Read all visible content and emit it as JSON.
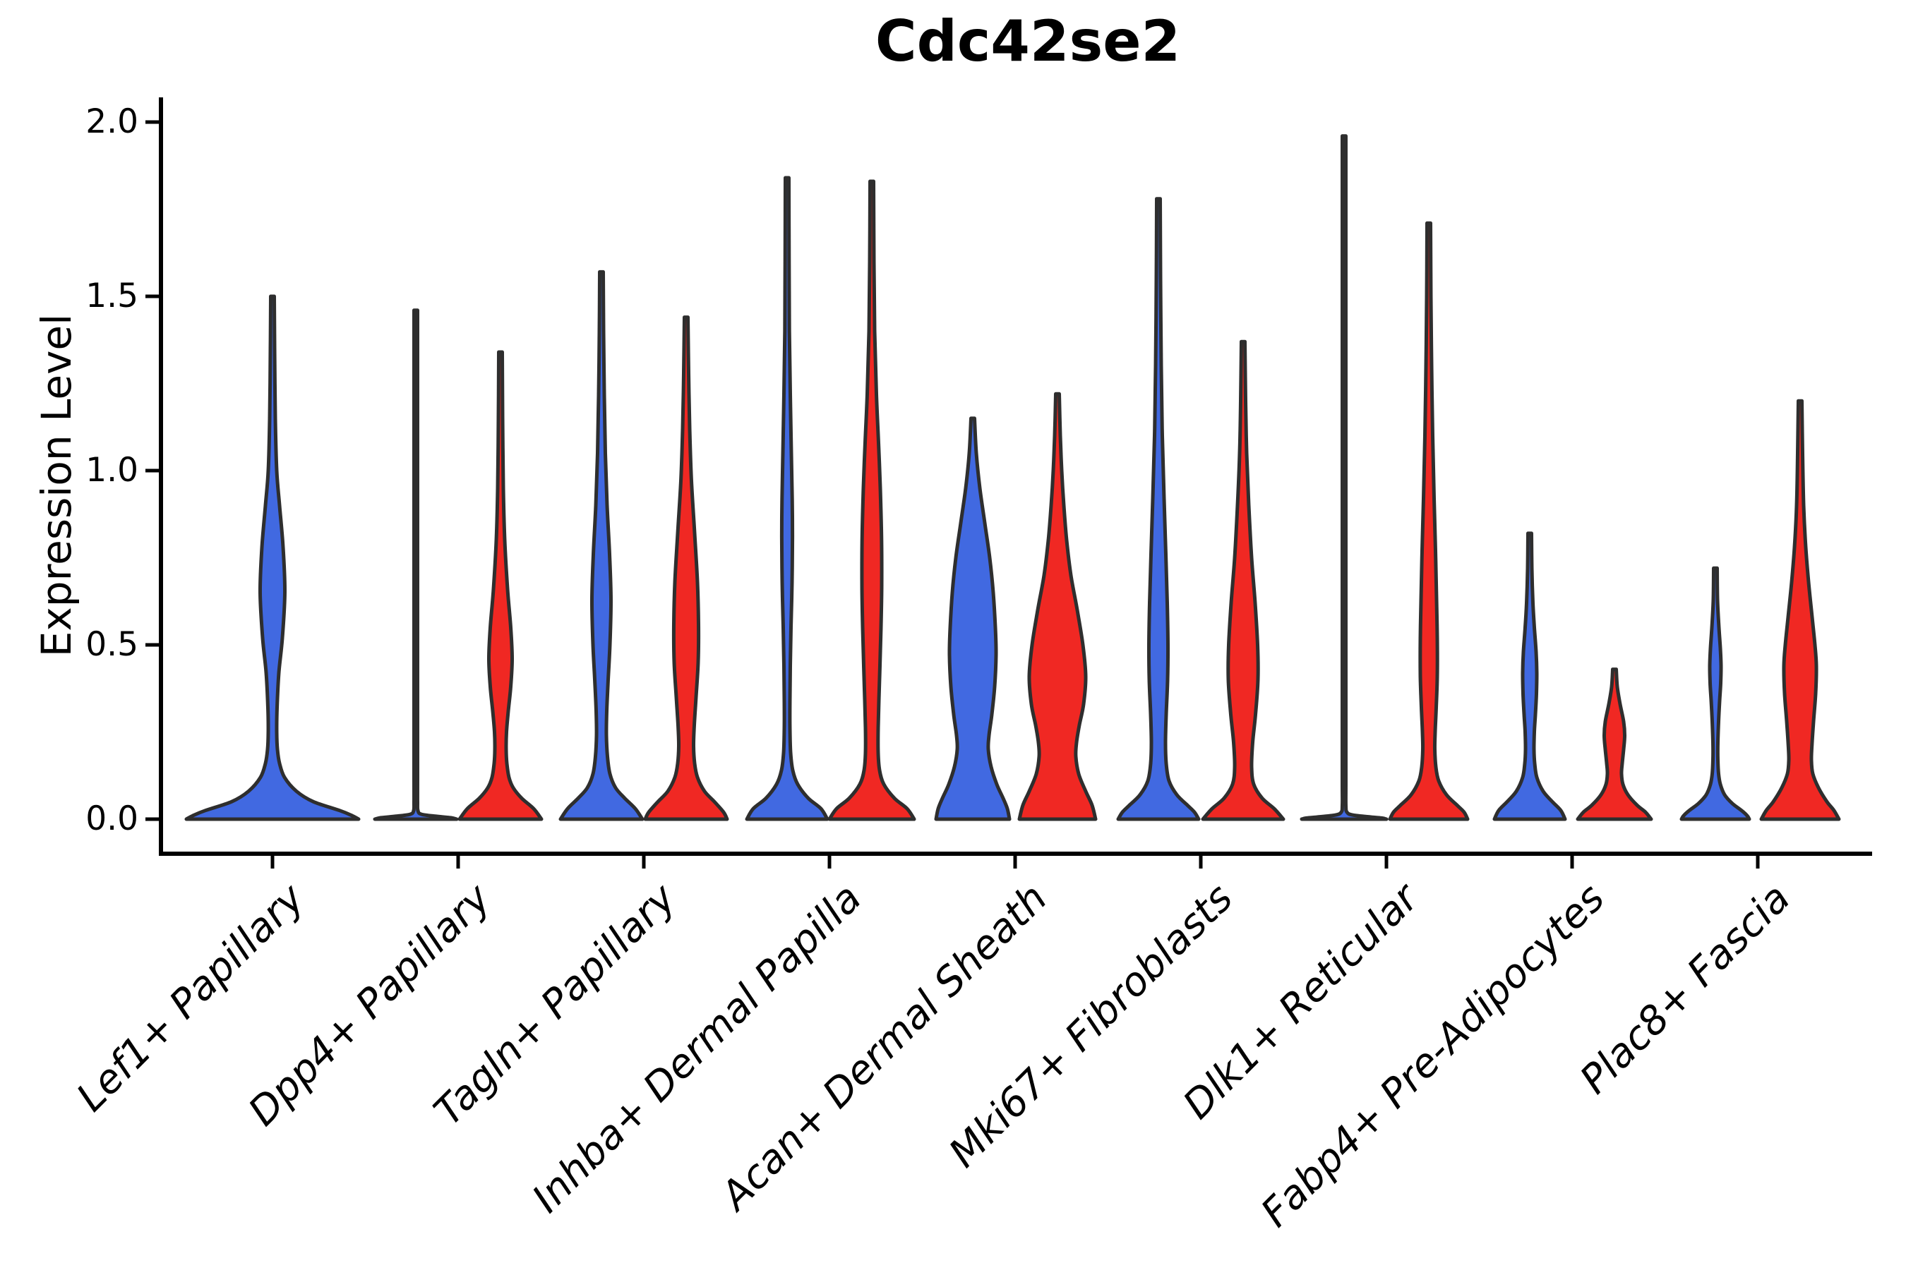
{
  "chart_data": {
    "type": "violin",
    "title": "Cdc42se2",
    "ylabel": "Expression Level",
    "xlabel": "",
    "ylim": [
      0,
      2.0
    ],
    "ytick_labels": [
      "0.0",
      "0.5",
      "1.0",
      "1.5",
      "2.0"
    ],
    "ytick_values": [
      0,
      0.5,
      1.0,
      1.5,
      2.0
    ],
    "grid": false,
    "legend_position": "none",
    "categories": [
      "Lef1+ Papillary",
      "Dpp4+ Papillary",
      "Tagln+ Papillary",
      "Inhba+ Dermal Papilla",
      "Acan+ Dermal Sheath",
      "Mki67+ Fibroblasts",
      "Dlk1+ Reticular",
      "Fabp4+ Pre-Adipocytes",
      "Plac8+ Fascia"
    ],
    "series": [
      {
        "name": "group-blue",
        "color": "#4169E1"
      },
      {
        "name": "group-red",
        "color": "#F02823"
      }
    ],
    "outline_color": "#2e2e2e",
    "axis_color": "#000000",
    "violins": [
      {
        "category_index": 0,
        "series_index": 0,
        "position": "center",
        "max_expression": 1.5,
        "profile": [
          [
            1.5,
            2.5
          ],
          [
            1.35,
            3
          ],
          [
            1.15,
            4
          ],
          [
            1.0,
            6
          ],
          [
            0.9,
            10
          ],
          [
            0.78,
            15
          ],
          [
            0.65,
            17.5
          ],
          [
            0.52,
            14
          ],
          [
            0.42,
            9
          ],
          [
            0.32,
            6.5
          ],
          [
            0.25,
            6
          ],
          [
            0.2,
            7
          ],
          [
            0.16,
            10
          ],
          [
            0.12,
            17
          ],
          [
            0.08,
            34
          ],
          [
            0.05,
            58
          ],
          [
            0.025,
            95
          ],
          [
            0.01,
            113
          ],
          [
            0,
            122
          ]
        ]
      },
      {
        "category_index": 1,
        "series_index": 0,
        "position": "left",
        "max_expression": 1.46,
        "profile": [
          [
            1.46,
            2.5
          ],
          [
            1.0,
            2.5
          ],
          [
            0.5,
            2.5
          ],
          [
            0.12,
            2.5
          ],
          [
            0.05,
            2.5
          ],
          [
            0.025,
            3
          ],
          [
            0.014,
            8
          ],
          [
            0.008,
            30
          ],
          [
            0.004,
            50
          ],
          [
            0,
            58
          ]
        ]
      },
      {
        "category_index": 1,
        "series_index": 1,
        "position": "right",
        "max_expression": 1.34,
        "profile": [
          [
            1.34,
            2.5
          ],
          [
            1.15,
            3
          ],
          [
            0.95,
            4
          ],
          [
            0.8,
            6
          ],
          [
            0.66,
            10
          ],
          [
            0.55,
            14.5
          ],
          [
            0.46,
            16.5
          ],
          [
            0.38,
            14.5
          ],
          [
            0.31,
            11
          ],
          [
            0.25,
            8.5
          ],
          [
            0.2,
            8
          ],
          [
            0.16,
            9
          ],
          [
            0.12,
            12
          ],
          [
            0.09,
            18
          ],
          [
            0.06,
            30
          ],
          [
            0.03,
            47
          ],
          [
            0,
            58
          ]
        ]
      },
      {
        "category_index": 2,
        "series_index": 0,
        "position": "left",
        "max_expression": 1.57,
        "profile": [
          [
            1.57,
            2.5
          ],
          [
            1.4,
            3
          ],
          [
            1.22,
            4
          ],
          [
            1.05,
            5.5
          ],
          [
            0.9,
            8
          ],
          [
            0.76,
            11.5
          ],
          [
            0.63,
            13.5
          ],
          [
            0.5,
            12
          ],
          [
            0.4,
            9.5
          ],
          [
            0.31,
            7.5
          ],
          [
            0.24,
            7
          ],
          [
            0.18,
            8.5
          ],
          [
            0.13,
            12
          ],
          [
            0.09,
            20
          ],
          [
            0.06,
            33
          ],
          [
            0.03,
            48
          ],
          [
            0,
            58
          ]
        ]
      },
      {
        "category_index": 2,
        "series_index": 1,
        "position": "right",
        "max_expression": 1.44,
        "profile": [
          [
            1.44,
            2.5
          ],
          [
            1.28,
            3.5
          ],
          [
            1.12,
            5
          ],
          [
            0.97,
            7.5
          ],
          [
            0.82,
            12
          ],
          [
            0.68,
            16
          ],
          [
            0.56,
            17.5
          ],
          [
            0.45,
            17
          ],
          [
            0.35,
            14
          ],
          [
            0.27,
            11.5
          ],
          [
            0.21,
            10.5
          ],
          [
            0.16,
            12
          ],
          [
            0.12,
            16
          ],
          [
            0.08,
            26
          ],
          [
            0.05,
            40
          ],
          [
            0.02,
            53
          ],
          [
            0,
            58
          ]
        ]
      },
      {
        "category_index": 3,
        "series_index": 0,
        "position": "left",
        "max_expression": 1.84,
        "profile": [
          [
            1.84,
            2.5
          ],
          [
            1.6,
            2.8
          ],
          [
            1.4,
            3.2
          ],
          [
            1.22,
            4.5
          ],
          [
            1.05,
            6
          ],
          [
            0.92,
            7.2
          ],
          [
            0.81,
            7.6
          ],
          [
            0.68,
            7
          ],
          [
            0.55,
            5.5
          ],
          [
            0.44,
            4.5
          ],
          [
            0.34,
            4
          ],
          [
            0.26,
            4
          ],
          [
            0.19,
            5
          ],
          [
            0.14,
            8
          ],
          [
            0.1,
            15
          ],
          [
            0.06,
            30
          ],
          [
            0.03,
            48
          ],
          [
            0,
            57
          ]
        ]
      },
      {
        "category_index": 3,
        "series_index": 1,
        "position": "right",
        "max_expression": 1.83,
        "profile": [
          [
            1.83,
            2.5
          ],
          [
            1.6,
            3
          ],
          [
            1.4,
            4
          ],
          [
            1.22,
            6.5
          ],
          [
            1.08,
            9.5
          ],
          [
            0.95,
            12
          ],
          [
            0.8,
            13.8
          ],
          [
            0.67,
            14
          ],
          [
            0.55,
            13
          ],
          [
            0.44,
            11.5
          ],
          [
            0.34,
            10
          ],
          [
            0.26,
            9
          ],
          [
            0.19,
            9
          ],
          [
            0.14,
            11
          ],
          [
            0.1,
            17
          ],
          [
            0.06,
            32
          ],
          [
            0.03,
            50
          ],
          [
            0,
            60
          ]
        ]
      },
      {
        "category_index": 4,
        "series_index": 0,
        "position": "left",
        "max_expression": 1.15,
        "profile": [
          [
            1.15,
            2.5
          ],
          [
            1.05,
            5
          ],
          [
            0.95,
            10
          ],
          [
            0.85,
            17
          ],
          [
            0.75,
            24
          ],
          [
            0.65,
            29
          ],
          [
            0.55,
            32
          ],
          [
            0.47,
            33
          ],
          [
            0.38,
            31
          ],
          [
            0.3,
            27
          ],
          [
            0.24,
            23
          ],
          [
            0.2,
            22
          ],
          [
            0.15,
            26
          ],
          [
            0.1,
            34
          ],
          [
            0.06,
            43
          ],
          [
            0.03,
            49
          ],
          [
            0,
            52
          ]
        ]
      },
      {
        "category_index": 4,
        "series_index": 1,
        "position": "right",
        "max_expression": 1.22,
        "profile": [
          [
            1.22,
            2.5
          ],
          [
            1.1,
            4
          ],
          [
            1.0,
            6
          ],
          [
            0.9,
            9
          ],
          [
            0.8,
            13
          ],
          [
            0.7,
            19
          ],
          [
            0.6,
            28
          ],
          [
            0.5,
            36
          ],
          [
            0.41,
            40
          ],
          [
            0.33,
            37
          ],
          [
            0.27,
            31
          ],
          [
            0.22,
            27
          ],
          [
            0.18,
            26
          ],
          [
            0.13,
            30
          ],
          [
            0.08,
            40
          ],
          [
            0.04,
            49
          ],
          [
            0,
            54
          ]
        ]
      },
      {
        "category_index": 5,
        "series_index": 0,
        "position": "left",
        "max_expression": 1.78,
        "profile": [
          [
            1.78,
            2.5
          ],
          [
            1.55,
            3
          ],
          [
            1.3,
            4
          ],
          [
            1.1,
            5.5
          ],
          [
            0.92,
            8
          ],
          [
            0.76,
            10.5
          ],
          [
            0.62,
            12.5
          ],
          [
            0.5,
            13.5
          ],
          [
            0.4,
            13
          ],
          [
            0.3,
            11
          ],
          [
            0.22,
            10
          ],
          [
            0.16,
            11
          ],
          [
            0.11,
            15
          ],
          [
            0.07,
            26
          ],
          [
            0.04,
            41
          ],
          [
            0.02,
            51
          ],
          [
            0,
            57
          ]
        ]
      },
      {
        "category_index": 5,
        "series_index": 1,
        "position": "right",
        "max_expression": 1.37,
        "profile": [
          [
            1.37,
            2.5
          ],
          [
            1.2,
            3.5
          ],
          [
            1.05,
            5
          ],
          [
            0.9,
            8
          ],
          [
            0.75,
            12
          ],
          [
            0.62,
            17
          ],
          [
            0.5,
            20.5
          ],
          [
            0.4,
            21
          ],
          [
            0.3,
            17.5
          ],
          [
            0.22,
            13.5
          ],
          [
            0.15,
            12
          ],
          [
            0.1,
            15
          ],
          [
            0.06,
            27
          ],
          [
            0.03,
            44
          ],
          [
            0,
            57
          ]
        ]
      },
      {
        "category_index": 6,
        "series_index": 0,
        "position": "left",
        "max_expression": 1.96,
        "profile": [
          [
            1.96,
            2.5
          ],
          [
            1.4,
            2.5
          ],
          [
            0.8,
            2.5
          ],
          [
            0.3,
            2.5
          ],
          [
            0.1,
            2.5
          ],
          [
            0.04,
            2.5
          ],
          [
            0.02,
            4
          ],
          [
            0.012,
            12
          ],
          [
            0.006,
            38
          ],
          [
            0.003,
            54
          ],
          [
            0,
            60
          ]
        ]
      },
      {
        "category_index": 6,
        "series_index": 1,
        "position": "right",
        "max_expression": 1.71,
        "profile": [
          [
            1.71,
            2.5
          ],
          [
            1.5,
            3
          ],
          [
            1.3,
            4
          ],
          [
            1.1,
            5.5
          ],
          [
            0.92,
            7.5
          ],
          [
            0.77,
            9.5
          ],
          [
            0.63,
            11
          ],
          [
            0.52,
            12
          ],
          [
            0.41,
            12
          ],
          [
            0.32,
            10.5
          ],
          [
            0.25,
            9
          ],
          [
            0.2,
            8.5
          ],
          [
            0.15,
            10
          ],
          [
            0.11,
            14
          ],
          [
            0.07,
            25
          ],
          [
            0.04,
            40
          ],
          [
            0.02,
            50
          ],
          [
            0,
            55
          ]
        ]
      },
      {
        "category_index": 7,
        "series_index": 0,
        "position": "left",
        "max_expression": 0.82,
        "profile": [
          [
            0.82,
            2.5
          ],
          [
            0.72,
            3
          ],
          [
            0.62,
            4.5
          ],
          [
            0.55,
            6.5
          ],
          [
            0.48,
            9
          ],
          [
            0.42,
            10
          ],
          [
            0.36,
            9.5
          ],
          [
            0.3,
            8
          ],
          [
            0.25,
            6.5
          ],
          [
            0.2,
            6
          ],
          [
            0.16,
            7
          ],
          [
            0.12,
            10
          ],
          [
            0.08,
            19
          ],
          [
            0.05,
            32
          ],
          [
            0.025,
            44
          ],
          [
            0,
            50
          ]
        ]
      },
      {
        "category_index": 7,
        "series_index": 1,
        "position": "right",
        "max_expression": 0.43,
        "profile": [
          [
            0.43,
            2.5
          ],
          [
            0.38,
            4
          ],
          [
            0.33,
            8
          ],
          [
            0.28,
            13
          ],
          [
            0.24,
            14.5
          ],
          [
            0.2,
            13
          ],
          [
            0.16,
            11
          ],
          [
            0.13,
            10
          ],
          [
            0.1,
            12
          ],
          [
            0.07,
            19
          ],
          [
            0.04,
            32
          ],
          [
            0.02,
            44
          ],
          [
            0,
            52
          ]
        ]
      },
      {
        "category_index": 8,
        "series_index": 0,
        "position": "left",
        "max_expression": 0.72,
        "profile": [
          [
            0.72,
            2.5
          ],
          [
            0.63,
            3
          ],
          [
            0.55,
            5
          ],
          [
            0.49,
            7
          ],
          [
            0.44,
            8
          ],
          [
            0.39,
            7.5
          ],
          [
            0.34,
            6
          ],
          [
            0.28,
            4.5
          ],
          [
            0.22,
            3.5
          ],
          [
            0.17,
            3.5
          ],
          [
            0.13,
            4.5
          ],
          [
            0.1,
            7
          ],
          [
            0.07,
            13
          ],
          [
            0.045,
            24
          ],
          [
            0.025,
            37
          ],
          [
            0.01,
            45
          ],
          [
            0,
            48
          ]
        ]
      },
      {
        "category_index": 8,
        "series_index": 1,
        "position": "right",
        "max_expression": 1.2,
        "profile": [
          [
            1.2,
            2.5
          ],
          [
            1.05,
            3.5
          ],
          [
            0.9,
            5
          ],
          [
            0.78,
            8
          ],
          [
            0.68,
            12
          ],
          [
            0.58,
            17
          ],
          [
            0.5,
            21
          ],
          [
            0.44,
            23
          ],
          [
            0.36,
            22
          ],
          [
            0.28,
            19
          ],
          [
            0.22,
            17
          ],
          [
            0.17,
            16
          ],
          [
            0.13,
            18
          ],
          [
            0.09,
            26
          ],
          [
            0.05,
            38
          ],
          [
            0.025,
            48
          ],
          [
            0,
            55
          ]
        ]
      }
    ]
  }
}
